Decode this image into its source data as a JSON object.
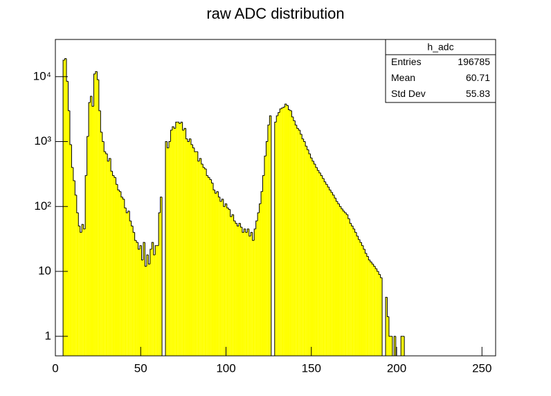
{
  "chart_data": {
    "type": "histogram",
    "title": "raw ADC distribution",
    "log_y": true,
    "color": "#ffff00",
    "edge_color": "#000000",
    "xlim": [
      0,
      258
    ],
    "ylim": [
      0.5,
      37500
    ],
    "xticks": [
      0,
      50,
      100,
      150,
      200,
      250
    ],
    "yticks": [
      1,
      10,
      {
        "value": 100,
        "label": "10²"
      },
      {
        "value": 1000,
        "label": "10³"
      },
      {
        "value": 10000,
        "label": "10⁴"
      }
    ],
    "bins": [
      4.5,
      5.5,
      6.5,
      7.5,
      8.5,
      9.5,
      10.5,
      11.5,
      12.5,
      13.5,
      14.5,
      15.5,
      16.5,
      17.5,
      18.5,
      19.5,
      20.5,
      21.5,
      22.5,
      23.5,
      24.5,
      25.5,
      26.5,
      27.5,
      28.5,
      29.5,
      30.5,
      31.5,
      32.5,
      33.5,
      34.5,
      35.5,
      36.5,
      37.5,
      38.5,
      39.5,
      40.5,
      41.5,
      42.5,
      43.5,
      44.5,
      45.5,
      46.5,
      47.5,
      48.5,
      49.5,
      50.5,
      51.5,
      52.5,
      53.5,
      54.5,
      55.5,
      56.5,
      57.5,
      58.5,
      59.5,
      60.5,
      61.5,
      62.5,
      63.5,
      64.5,
      65.5,
      66.5,
      67.5,
      68.5,
      69.5,
      70.5,
      71.5,
      72.5,
      73.5,
      74.5,
      75.5,
      76.5,
      77.5,
      78.5,
      79.5,
      80.5,
      81.5,
      82.5,
      83.5,
      84.5,
      85.5,
      86.5,
      87.5,
      88.5,
      89.5,
      90.5,
      91.5,
      92.5,
      93.5,
      94.5,
      95.5,
      96.5,
      97.5,
      98.5,
      99.5,
      100.5,
      101.5,
      102.5,
      103.5,
      104.5,
      105.5,
      106.5,
      107.5,
      108.5,
      109.5,
      110.5,
      111.5,
      112.5,
      113.5,
      114.5,
      115.5,
      116.5,
      117.5,
      118.5,
      119.5,
      120.5,
      121.5,
      122.5,
      123.5,
      124.5,
      125.5,
      126.5,
      127.5,
      128.5,
      129.5,
      130.5,
      131.5,
      132.5,
      133.5,
      134.5,
      135.5,
      136.5,
      137.5,
      138.5,
      139.5,
      140.5,
      141.5,
      142.5,
      143.5,
      144.5,
      145.5,
      146.5,
      147.5,
      148.5,
      149.5,
      150.5,
      151.5,
      152.5,
      153.5,
      154.5,
      155.5,
      156.5,
      157.5,
      158.5,
      159.5,
      160.5,
      161.5,
      162.5,
      163.5,
      164.5,
      165.5,
      166.5,
      167.5,
      168.5,
      169.5,
      170.5,
      171.5,
      172.5,
      173.5,
      174.5,
      175.5,
      176.5,
      177.5,
      178.5,
      179.5,
      180.5,
      181.5,
      182.5,
      183.5,
      184.5,
      185.5,
      186.5,
      187.5,
      188.5,
      189.5,
      190.5,
      191.5,
      192.5,
      193.5,
      194.5,
      195.5,
      196.5,
      197.5,
      198.5,
      199.5,
      200.5,
      201.5,
      202.5,
      203.5,
      204.5,
      205.5
    ],
    "values": [
      18000,
      19000,
      8500,
      3000,
      900,
      400,
      250,
      150,
      80,
      50,
      40,
      53,
      45,
      300,
      1200,
      4000,
      5000,
      3500,
      11000,
      12000,
      9000,
      3000,
      1400,
      1000,
      700,
      650,
      500,
      550,
      350,
      300,
      280,
      220,
      180,
      170,
      140,
      130,
      95,
      80,
      85,
      60,
      50,
      40,
      30,
      28,
      22,
      25,
      15,
      28,
      12,
      18,
      13,
      22,
      28,
      18,
      25,
      25,
      80,
      140,
      0,
      0,
      1000,
      800,
      1000,
      1500,
      1700,
      1600,
      2000,
      2000,
      1900,
      2000,
      1500,
      1600,
      1100,
      1000,
      1100,
      900,
      800,
      700,
      700,
      500,
      550,
      450,
      400,
      380,
      300,
      280,
      260,
      230,
      180,
      160,
      170,
      140,
      120,
      130,
      100,
      110,
      95,
      90,
      70,
      75,
      60,
      55,
      50,
      55,
      48,
      40,
      45,
      40,
      45,
      35,
      40,
      30,
      45,
      60,
      80,
      110,
      170,
      300,
      600,
      1000,
      1800,
      2500,
      0,
      0,
      2000,
      2500,
      2800,
      3200,
      3300,
      3400,
      3800,
      3600,
      3100,
      3000,
      2400,
      2100,
      1800,
      1600,
      1500,
      1300,
      1100,
      1000,
      850,
      750,
      650,
      560,
      500,
      450,
      400,
      360,
      330,
      300,
      270,
      240,
      220,
      200,
      180,
      165,
      150,
      135,
      120,
      110,
      100,
      92,
      85,
      80,
      75,
      65,
      55,
      50,
      45,
      40,
      35,
      31,
      28,
      25,
      22,
      19,
      17,
      15,
      14,
      13,
      12,
      11,
      10,
      9,
      8,
      0,
      0,
      4,
      2,
      1,
      1,
      0,
      1,
      0,
      0,
      0,
      1,
      1,
      0
    ],
    "stats": {
      "name": "h_adc",
      "rows": [
        [
          "Entries",
          "196785"
        ],
        [
          "Mean",
          "60.71"
        ],
        [
          "Std Dev",
          "55.83"
        ]
      ]
    }
  }
}
